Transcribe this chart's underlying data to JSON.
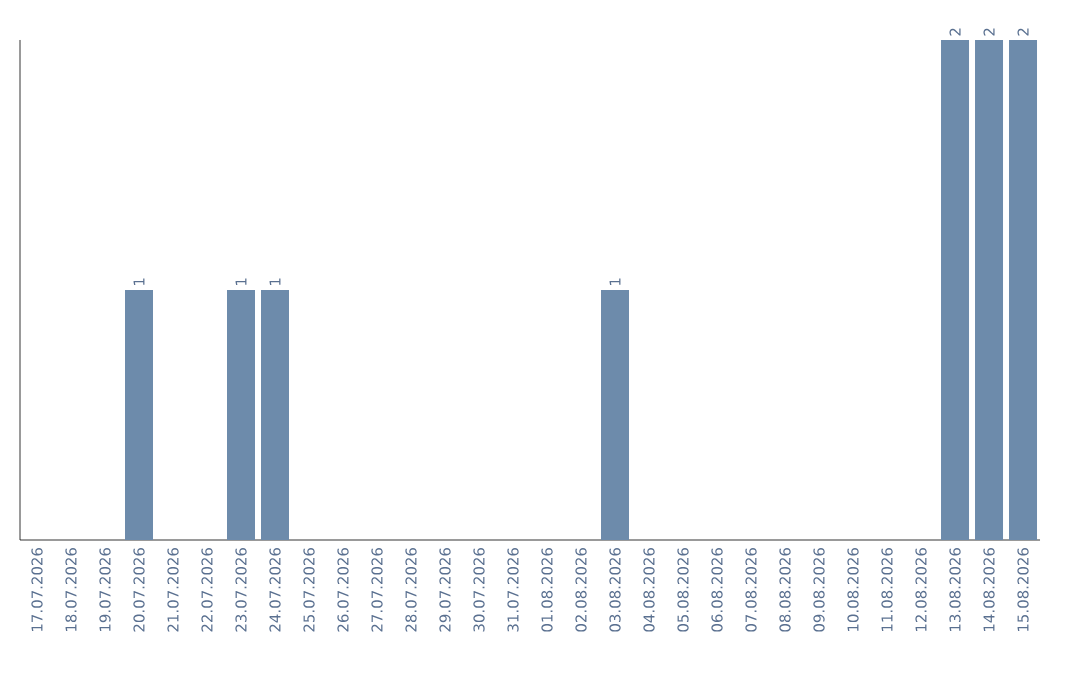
{
  "chart_data": {
    "type": "bar",
    "categories": [
      "17.07.2026",
      "18.07.2026",
      "19.07.2026",
      "20.07.2026",
      "21.07.2026",
      "22.07.2026",
      "23.07.2026",
      "24.07.2026",
      "25.07.2026",
      "26.07.2026",
      "27.07.2026",
      "28.07.2026",
      "29.07.2026",
      "30.07.2026",
      "31.07.2026",
      "01.08.2026",
      "02.08.2026",
      "03.08.2026",
      "04.08.2026",
      "05.08.2026",
      "06.08.2026",
      "07.08.2026",
      "08.08.2026",
      "09.08.2026",
      "10.08.2026",
      "11.08.2026",
      "12.08.2026",
      "13.08.2026",
      "14.08.2026",
      "15.08.2026"
    ],
    "values": [
      0,
      0,
      0,
      1,
      0,
      0,
      1,
      1,
      0,
      0,
      0,
      0,
      0,
      0,
      0,
      0,
      0,
      1,
      0,
      0,
      0,
      0,
      0,
      0,
      0,
      0,
      0,
      2,
      2,
      2
    ],
    "value_labels": [
      null,
      null,
      null,
      "1",
      null,
      null,
      "1",
      "1",
      null,
      null,
      null,
      null,
      null,
      null,
      null,
      null,
      null,
      "1",
      null,
      null,
      null,
      null,
      null,
      null,
      null,
      null,
      null,
      "2",
      "2",
      "2"
    ],
    "color": "#6d8bab",
    "grid": false
  }
}
